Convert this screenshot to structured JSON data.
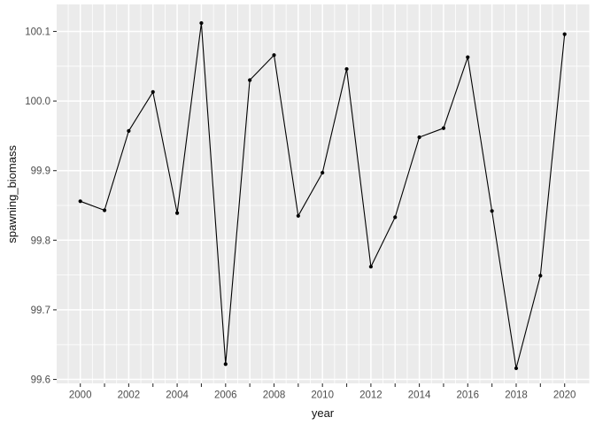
{
  "chart_data": {
    "type": "line",
    "title": "",
    "xlabel": "year",
    "ylabel": "spawning_biomass",
    "x": [
      2000,
      2001,
      2002,
      2003,
      2004,
      2005,
      2006,
      2007,
      2008,
      2009,
      2010,
      2011,
      2012,
      2013,
      2014,
      2015,
      2016,
      2017,
      2018,
      2019,
      2020
    ],
    "series": [
      {
        "name": "spawning_biomass",
        "values": [
          99.856,
          99.843,
          99.957,
          100.013,
          99.839,
          100.112,
          99.622,
          100.03,
          100.066,
          99.835,
          99.897,
          100.046,
          99.762,
          99.833,
          99.948,
          99.961,
          100.063,
          99.842,
          99.616,
          99.749,
          100.096
        ]
      }
    ],
    "x_domain": [
      1999.024,
      2021.017
    ],
    "y_domain": [
      99.5943,
      100.1388
    ],
    "x_major_ticks": [
      2000,
      2001,
      2002,
      2003,
      2004,
      2005,
      2006,
      2007,
      2008,
      2009,
      2010,
      2011,
      2012,
      2013,
      2014,
      2015,
      2016,
      2017,
      2018,
      2019,
      2020
    ],
    "x_labeled_ticks": [
      2000,
      2002,
      2004,
      2006,
      2008,
      2010,
      2012,
      2014,
      2016,
      2018,
      2020
    ],
    "x_minor_ticks": [
      1999.5,
      2000.5,
      2001.5,
      2002.5,
      2003.5,
      2004.5,
      2005.5,
      2006.5,
      2007.5,
      2008.5,
      2009.5,
      2010.5,
      2011.5,
      2012.5,
      2013.5,
      2014.5,
      2015.5,
      2016.5,
      2017.5,
      2018.5,
      2019.5,
      2020.5
    ],
    "y_major_ticks": [
      99.6,
      99.7,
      99.8,
      99.9,
      100.0,
      100.1
    ],
    "y_minor_ticks": [
      99.65,
      99.75,
      99.85,
      99.95,
      100.05
    ],
    "grid": true,
    "legend": "none",
    "marker": "point",
    "style": {
      "panel_bg": "#EBEBEB",
      "grid_major": "#FFFFFF",
      "grid_minor": "#FFFFFF",
      "line_color": "#000000",
      "point_color": "#000000",
      "tick_color": "#333333",
      "tick_label_color": "#4D4D4D",
      "axis_title_color": "#111111"
    }
  }
}
